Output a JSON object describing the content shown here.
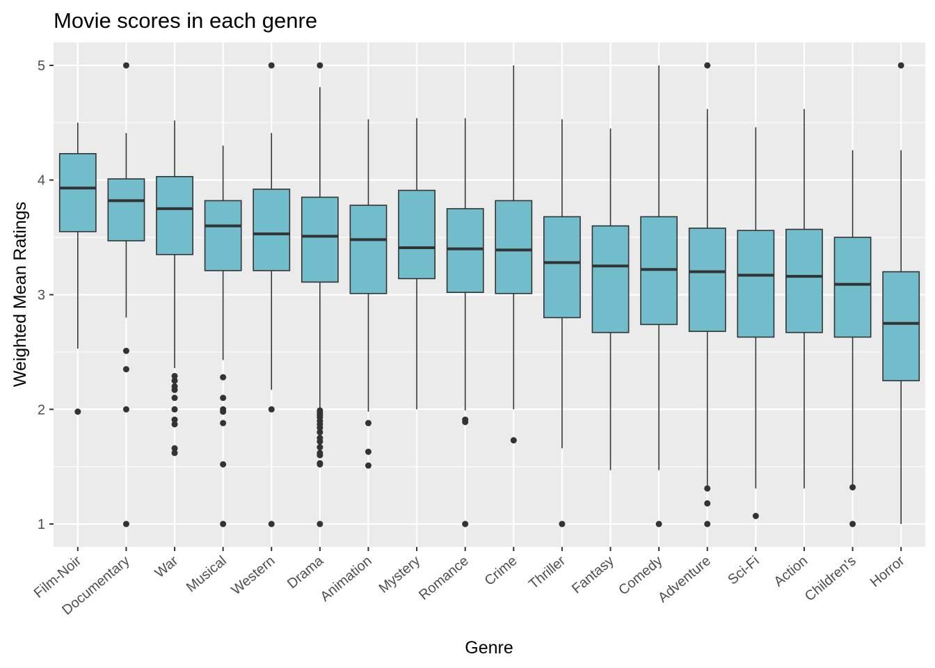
{
  "chart_data": {
    "type": "boxplot",
    "title": "Movie scores in each genre",
    "xlabel": "Genre",
    "ylabel": "Weighted Mean Ratings",
    "ylim": [
      0.8,
      5.2
    ],
    "yticks": [
      1,
      2,
      3,
      4,
      5
    ],
    "grid": true,
    "legend": "none",
    "colors": {
      "panel": "#ebebeb",
      "grid": "#ffffff",
      "box_fill": "#72bdcb",
      "box_stroke": "#333333",
      "outlier": "#333333",
      "tick_text": "#4d4d4d"
    },
    "categories": [
      "Film-Noir",
      "Documentary",
      "War",
      "Musical",
      "Western",
      "Drama",
      "Animation",
      "Mystery",
      "Romance",
      "Crime",
      "Thriller",
      "Fantasy",
      "Comedy",
      "Adventure",
      "Sci-Fi",
      "Action",
      "Children's",
      "Horror"
    ],
    "boxes": [
      {
        "genre": "Film-Noir",
        "whisker_low": 2.53,
        "q1": 3.55,
        "median": 3.93,
        "q3": 4.23,
        "whisker_high": 4.5,
        "outliers": [
          1.98
        ]
      },
      {
        "genre": "Documentary",
        "whisker_low": 2.8,
        "q1": 3.47,
        "median": 3.82,
        "q3": 4.01,
        "whisker_high": 4.41,
        "outliers": [
          5.0,
          2.51,
          2.35,
          2.0,
          1.0
        ]
      },
      {
        "genre": "War",
        "whisker_low": 2.36,
        "q1": 3.35,
        "median": 3.75,
        "q3": 4.03,
        "whisker_high": 4.52,
        "outliers": [
          2.29,
          2.25,
          2.2,
          2.17,
          2.1,
          2.0,
          1.91,
          1.87,
          1.66,
          1.62
        ]
      },
      {
        "genre": "Musical",
        "whisker_low": 2.43,
        "q1": 3.21,
        "median": 3.6,
        "q3": 3.82,
        "whisker_high": 4.3,
        "outliers": [
          2.28,
          2.1,
          2.0,
          1.98,
          1.88,
          1.52,
          1.0
        ]
      },
      {
        "genre": "Western",
        "whisker_low": 2.17,
        "q1": 3.21,
        "median": 3.53,
        "q3": 3.92,
        "whisker_high": 4.41,
        "outliers": [
          5.0,
          2.0,
          1.0
        ]
      },
      {
        "genre": "Drama",
        "whisker_low": 2.0,
        "q1": 3.11,
        "median": 3.51,
        "q3": 3.85,
        "whisker_high": 4.81,
        "outliers": [
          5.0,
          1.99,
          1.97,
          1.95,
          1.93,
          1.9,
          1.87,
          1.84,
          1.8,
          1.75,
          1.72,
          1.67,
          1.62,
          1.6,
          1.53,
          1.52,
          1.0
        ]
      },
      {
        "genre": "Animation",
        "whisker_low": 1.98,
        "q1": 3.01,
        "median": 3.48,
        "q3": 3.78,
        "whisker_high": 4.53,
        "outliers": [
          1.88,
          1.63,
          1.51
        ]
      },
      {
        "genre": "Mystery",
        "whisker_low": 2.0,
        "q1": 3.14,
        "median": 3.41,
        "q3": 3.91,
        "whisker_high": 4.54,
        "outliers": []
      },
      {
        "genre": "Romance",
        "whisker_low": 1.99,
        "q1": 3.02,
        "median": 3.4,
        "q3": 3.75,
        "whisker_high": 4.54,
        "outliers": [
          1.91,
          1.89,
          1.0
        ]
      },
      {
        "genre": "Crime",
        "whisker_low": 2.0,
        "q1": 3.01,
        "median": 3.39,
        "q3": 3.82,
        "whisker_high": 5.0,
        "outliers": [
          1.73
        ]
      },
      {
        "genre": "Thriller",
        "whisker_low": 1.66,
        "q1": 2.8,
        "median": 3.28,
        "q3": 3.68,
        "whisker_high": 4.53,
        "outliers": [
          1.0
        ]
      },
      {
        "genre": "Fantasy",
        "whisker_low": 1.47,
        "q1": 2.67,
        "median": 3.25,
        "q3": 3.6,
        "whisker_high": 4.45,
        "outliers": []
      },
      {
        "genre": "Comedy",
        "whisker_low": 1.47,
        "q1": 2.74,
        "median": 3.22,
        "q3": 3.68,
        "whisker_high": 5.0,
        "outliers": [
          1.0
        ]
      },
      {
        "genre": "Adventure",
        "whisker_low": 1.32,
        "q1": 2.68,
        "median": 3.2,
        "q3": 3.58,
        "whisker_high": 4.62,
        "outliers": [
          5.0,
          1.31,
          1.18,
          1.0
        ]
      },
      {
        "genre": "Sci-Fi",
        "whisker_low": 1.31,
        "q1": 2.63,
        "median": 3.17,
        "q3": 3.56,
        "whisker_high": 4.46,
        "outliers": [
          1.07
        ]
      },
      {
        "genre": "Action",
        "whisker_low": 1.31,
        "q1": 2.67,
        "median": 3.16,
        "q3": 3.57,
        "whisker_high": 4.62,
        "outliers": []
      },
      {
        "genre": "Children's",
        "whisker_low": 1.33,
        "q1": 2.63,
        "median": 3.09,
        "q3": 3.5,
        "whisker_high": 4.26,
        "outliers": [
          1.32,
          1.0
        ]
      },
      {
        "genre": "Horror",
        "whisker_low": 1.0,
        "q1": 2.25,
        "median": 2.75,
        "q3": 3.2,
        "whisker_high": 4.26,
        "outliers": [
          5.0
        ]
      }
    ]
  }
}
